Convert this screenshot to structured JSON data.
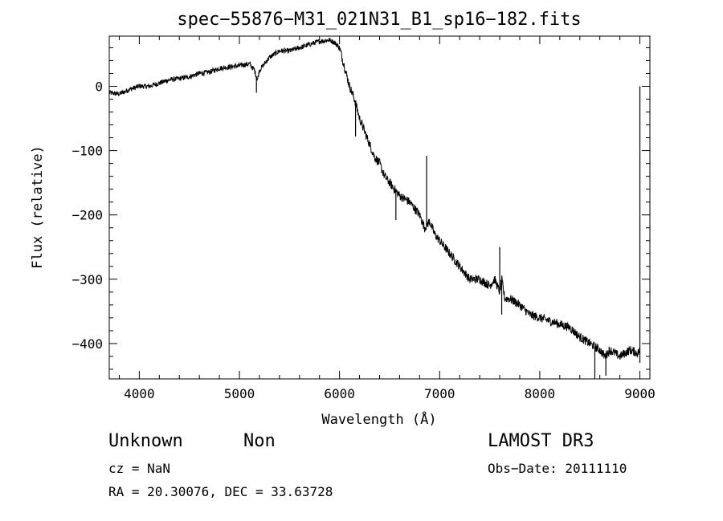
{
  "chart_data": {
    "type": "line",
    "title": "spec−55876−M31_021N31_B1_sp16−182.fits",
    "xlabel": "Wavelength (Å)",
    "ylabel": "Flux (relative)",
    "xlim": [
      3700,
      9100
    ],
    "ylim": [
      -455,
      78
    ],
    "xticks": [
      4000,
      5000,
      6000,
      7000,
      8000,
      9000
    ],
    "xtick_labels": [
      "4000",
      "5000",
      "6000",
      "7000",
      "8000",
      "9000"
    ],
    "yticks": [
      0,
      -100,
      -200,
      -300,
      -400
    ],
    "ytick_labels": [
      "0",
      "−100",
      "−200",
      "−300",
      "−400"
    ],
    "grid": false,
    "series": [
      {
        "name": "flux",
        "x": [
          3700,
          3800,
          3900,
          4000,
          4100,
          4200,
          4300,
          4400,
          4500,
          4600,
          4700,
          4800,
          4900,
          5000,
          5100,
          5150,
          5180,
          5200,
          5250,
          5300,
          5400,
          5500,
          5600,
          5700,
          5800,
          5900,
          5950,
          6000,
          6050,
          6100,
          6150,
          6200,
          6250,
          6300,
          6350,
          6400,
          6450,
          6500,
          6550,
          6600,
          6700,
          6800,
          6850,
          6900,
          6950,
          7000,
          7050,
          7100,
          7200,
          7300,
          7400,
          7500,
          7550,
          7600,
          7620,
          7650,
          7700,
          7800,
          7900,
          8000,
          8100,
          8200,
          8300,
          8400,
          8500,
          8550,
          8600,
          8650,
          8700,
          8800,
          8900,
          8980,
          9000
        ],
        "y": [
          -10,
          -12,
          -5,
          0,
          0,
          5,
          10,
          12,
          15,
          20,
          22,
          28,
          30,
          32,
          35,
          25,
          10,
          25,
          35,
          45,
          55,
          55,
          60,
          65,
          70,
          72,
          68,
          60,
          30,
          0,
          -20,
          -50,
          -70,
          -90,
          -110,
          -120,
          -140,
          -150,
          -160,
          -170,
          -180,
          -200,
          -220,
          -210,
          -230,
          -240,
          -250,
          -260,
          -280,
          -300,
          -300,
          -310,
          -300,
          -320,
          -300,
          -330,
          -330,
          -340,
          -355,
          -360,
          -365,
          -370,
          -375,
          -390,
          -400,
          -405,
          -410,
          -420,
          -410,
          -420,
          -410,
          -415,
          -410
        ]
      }
    ],
    "spikes": [
      {
        "x": 5170,
        "y": -10
      },
      {
        "x": 6160,
        "y": -78
      },
      {
        "x": 6563,
        "y": -208
      },
      {
        "x": 6870,
        "y": -108
      },
      {
        "x": 7600,
        "y": -250
      },
      {
        "x": 7620,
        "y": -355
      },
      {
        "x": 8550,
        "y": -455
      },
      {
        "x": 8660,
        "y": -450
      },
      {
        "x": 9000,
        "y": 0
      },
      {
        "x": 9000,
        "y": -430
      }
    ]
  },
  "footer": {
    "object_class": "Unknown",
    "object_subclass": "Non",
    "survey": "LAMOST DR3",
    "cz": "cz = NaN",
    "obs_date": "Obs−Date: 20111110",
    "coords": "RA =  20.30076, DEC =  33.63728"
  }
}
